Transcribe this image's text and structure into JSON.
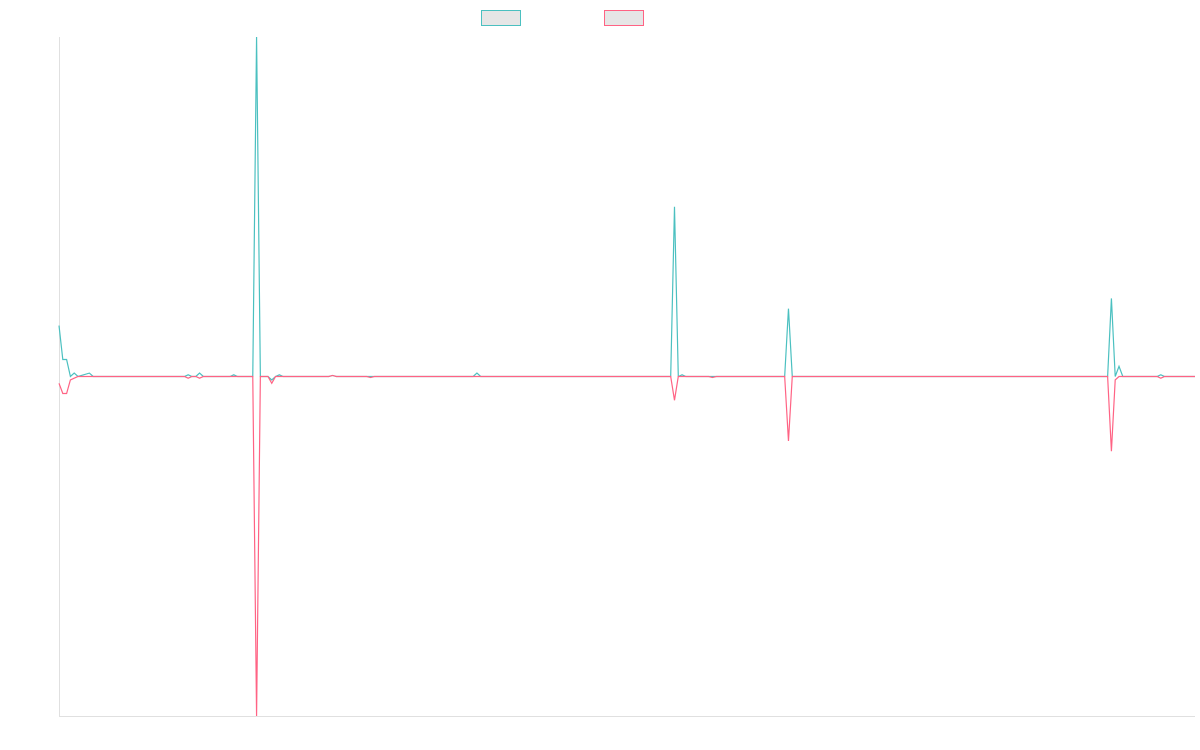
{
  "chart_data": {
    "type": "line",
    "x": [
      0,
      1,
      2,
      3,
      4,
      5,
      8,
      9,
      33,
      34,
      35,
      36,
      37,
      38,
      45,
      46,
      47,
      51,
      52,
      53,
      55,
      56,
      57,
      58,
      59,
      71,
      72,
      73,
      81,
      82,
      83,
      109,
      110,
      111,
      161,
      162,
      163,
      164,
      165,
      171,
      172,
      173,
      191,
      192,
      193,
      276,
      277,
      278,
      279,
      280,
      289,
      290,
      291,
      299
    ],
    "xlim": [
      0,
      299
    ],
    "ylim": [
      -100,
      100
    ],
    "series": [
      {
        "color": "#4bc0c0",
        "values": [
          15,
          5,
          5,
          0,
          1,
          0,
          1,
          0,
          0,
          0.5,
          0,
          0,
          1,
          0,
          0,
          0.5,
          0,
          0,
          100,
          0,
          0,
          -1,
          0,
          0.5,
          0,
          0,
          0.3,
          0,
          0,
          0,
          0,
          0,
          1,
          0,
          0,
          50,
          0,
          0.5,
          0,
          0,
          0,
          0,
          0,
          20,
          0,
          0,
          23,
          0,
          3,
          0,
          0,
          0.5,
          0,
          0
        ]
      },
      {
        "color": "#ff6384",
        "values": [
          -2,
          -5,
          -5,
          -1,
          -0.5,
          0,
          0,
          0,
          0,
          -0.5,
          0,
          0,
          -0.5,
          0,
          0,
          0,
          0,
          0,
          -100,
          0,
          0,
          -2,
          0,
          0,
          0,
          0,
          0.3,
          0,
          0,
          -0.3,
          0,
          0,
          0,
          0,
          0,
          -7,
          0,
          0,
          0,
          0,
          -0.3,
          0,
          0,
          -19,
          0,
          0,
          -22,
          -1,
          0,
          0,
          0,
          -0.5,
          0,
          0
        ]
      }
    ]
  }
}
